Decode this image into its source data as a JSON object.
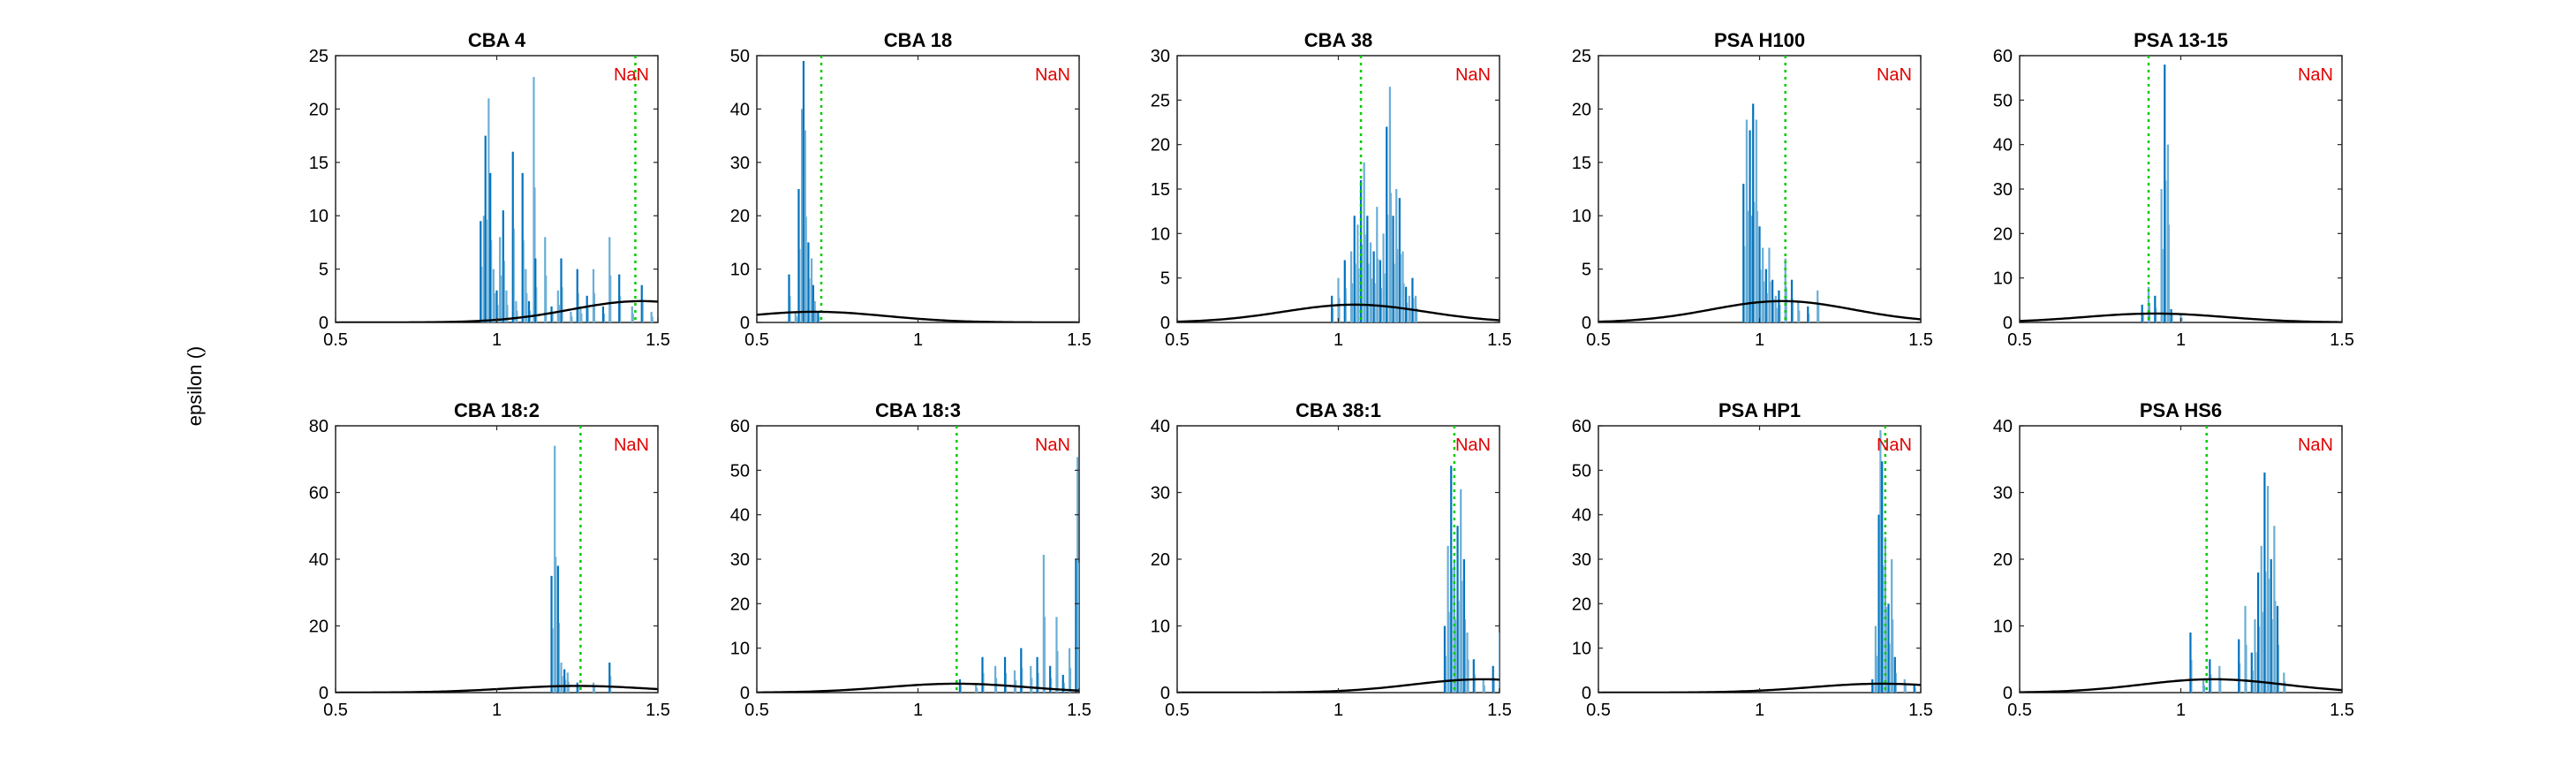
{
  "figure": {
    "ylabel": "epsilon ()"
  },
  "colors": {
    "bars": "#0072bd",
    "bars_light": "#6baed6",
    "fit_curve": "#000000",
    "marker_line": "#00cc00",
    "nan_text": "#e00000",
    "axes": "#262626"
  },
  "chart_data": [
    {
      "type": "line",
      "title": "CBA 4",
      "annotation": "NaN",
      "xlim": [
        0.5,
        1.5
      ],
      "ylim": [
        0,
        25
      ],
      "xticks": [
        0.5,
        1,
        1.5
      ],
      "xtick_labels": [
        "0.5",
        "1",
        "1.5"
      ],
      "yticks": [
        0,
        5,
        10,
        15,
        20,
        25
      ],
      "ytick_labels": [
        "0",
        "5",
        "10",
        "15",
        "20",
        "25"
      ],
      "marker_x": 1.43,
      "fit": {
        "mean": 1.45,
        "sd": 0.22,
        "peak": 2
      },
      "spikes": [
        [
          0.95,
          9.5
        ],
        [
          0.96,
          10
        ],
        [
          0.965,
          17.5
        ],
        [
          0.975,
          21
        ],
        [
          0.98,
          14
        ],
        [
          0.99,
          5
        ],
        [
          1.0,
          3
        ],
        [
          1.01,
          8
        ],
        [
          1.02,
          10.5
        ],
        [
          1.03,
          3
        ],
        [
          1.05,
          16
        ],
        [
          1.06,
          2
        ],
        [
          1.08,
          14
        ],
        [
          1.09,
          5
        ],
        [
          1.1,
          2
        ],
        [
          1.115,
          23
        ],
        [
          1.12,
          6
        ],
        [
          1.15,
          8
        ],
        [
          1.17,
          1.5
        ],
        [
          1.19,
          3
        ],
        [
          1.2,
          6
        ],
        [
          1.23,
          1
        ],
        [
          1.25,
          5
        ],
        [
          1.26,
          1.5
        ],
        [
          1.28,
          2.5
        ],
        [
          1.3,
          5
        ],
        [
          1.33,
          1.5
        ],
        [
          1.35,
          8
        ],
        [
          1.38,
          4.5
        ],
        [
          1.42,
          1.5
        ],
        [
          1.45,
          3.5
        ],
        [
          1.48,
          1
        ]
      ]
    },
    {
      "type": "line",
      "title": "CBA 18",
      "annotation": "NaN",
      "xlim": [
        0.5,
        1.5
      ],
      "ylim": [
        0,
        50
      ],
      "xticks": [
        0.5,
        1,
        1.5
      ],
      "xtick_labels": [
        "0.5",
        "1",
        "1.5"
      ],
      "yticks": [
        0,
        10,
        20,
        30,
        40,
        50
      ],
      "ytick_labels": [
        "0",
        "10",
        "20",
        "30",
        "40",
        "50"
      ],
      "marker_x": 0.7,
      "fit": {
        "mean": 0.68,
        "sd": 0.22,
        "peak": 2
      },
      "spikes": [
        [
          0.6,
          9
        ],
        [
          0.62,
          2
        ],
        [
          0.63,
          25
        ],
        [
          0.64,
          40
        ],
        [
          0.645,
          49
        ],
        [
          0.65,
          36
        ],
        [
          0.66,
          15
        ],
        [
          0.67,
          12
        ],
        [
          0.675,
          7
        ],
        [
          0.68,
          4
        ],
        [
          0.69,
          2
        ]
      ]
    },
    {
      "type": "line",
      "title": "CBA 38",
      "annotation": "NaN",
      "xlim": [
        0.5,
        1.5
      ],
      "ylim": [
        0,
        30
      ],
      "xticks": [
        0.5,
        1,
        1.5
      ],
      "xtick_labels": [
        "0.5",
        "1",
        "1.5"
      ],
      "yticks": [
        0,
        5,
        10,
        15,
        20,
        25,
        30
      ],
      "ytick_labels": [
        "0",
        "5",
        "10",
        "15",
        "20",
        "25",
        "30"
      ],
      "marker_x": 1.07,
      "fit": {
        "mean": 1.05,
        "sd": 0.22,
        "peak": 2
      },
      "spikes": [
        [
          0.98,
          3
        ],
        [
          1.0,
          5
        ],
        [
          1.02,
          7
        ],
        [
          1.04,
          8
        ],
        [
          1.05,
          12
        ],
        [
          1.06,
          11
        ],
        [
          1.07,
          16
        ],
        [
          1.08,
          18
        ],
        [
          1.09,
          12
        ],
        [
          1.1,
          9
        ],
        [
          1.11,
          8
        ],
        [
          1.12,
          13
        ],
        [
          1.13,
          7
        ],
        [
          1.14,
          10
        ],
        [
          1.15,
          22
        ],
        [
          1.16,
          26.5
        ],
        [
          1.17,
          12
        ],
        [
          1.18,
          15
        ],
        [
          1.19,
          14
        ],
        [
          1.2,
          8
        ],
        [
          1.21,
          4
        ],
        [
          1.22,
          3
        ],
        [
          1.23,
          5
        ],
        [
          1.24,
          3
        ]
      ]
    },
    {
      "type": "line",
      "title": "PSA H100",
      "annotation": "NaN",
      "xlim": [
        0.5,
        1.5
      ],
      "ylim": [
        0,
        25
      ],
      "xticks": [
        0.5,
        1,
        1.5
      ],
      "xtick_labels": [
        "0.5",
        "1",
        "1.5"
      ],
      "yticks": [
        0,
        5,
        10,
        15,
        20,
        25
      ],
      "ytick_labels": [
        "0",
        "5",
        "10",
        "15",
        "20",
        "25"
      ],
      "marker_x": 1.08,
      "fit": {
        "mean": 1.07,
        "sd": 0.22,
        "peak": 2
      },
      "spikes": [
        [
          0.95,
          13
        ],
        [
          0.96,
          19
        ],
        [
          0.97,
          18
        ],
        [
          0.975,
          10
        ],
        [
          0.98,
          20.5
        ],
        [
          0.99,
          19
        ],
        [
          1.0,
          9
        ],
        [
          1.01,
          7
        ],
        [
          1.02,
          5
        ],
        [
          1.03,
          7
        ],
        [
          1.04,
          4
        ],
        [
          1.05,
          2.5
        ],
        [
          1.06,
          3
        ],
        [
          1.08,
          6
        ],
        [
          1.1,
          4
        ],
        [
          1.12,
          2
        ],
        [
          1.15,
          1.5
        ],
        [
          1.18,
          3
        ]
      ]
    },
    {
      "type": "line",
      "title": "PSA 13-15",
      "annotation": "NaN",
      "xlim": [
        0.5,
        1.5
      ],
      "ylim": [
        0,
        60
      ],
      "xticks": [
        0.5,
        1,
        1.5
      ],
      "xtick_labels": [
        "0.5",
        "1",
        "1.5"
      ],
      "yticks": [
        0,
        10,
        20,
        30,
        40,
        50,
        60
      ],
      "ytick_labels": [
        "0",
        "10",
        "20",
        "30",
        "40",
        "50",
        "60"
      ],
      "marker_x": 0.9,
      "fit": {
        "mean": 0.92,
        "sd": 0.22,
        "peak": 2
      },
      "spikes": [
        [
          0.88,
          4
        ],
        [
          0.9,
          8
        ],
        [
          0.92,
          6
        ],
        [
          0.94,
          30
        ],
        [
          0.95,
          58
        ],
        [
          0.96,
          40
        ],
        [
          0.97,
          3
        ],
        [
          1.0,
          2
        ]
      ]
    },
    {
      "type": "line",
      "title": "CBA 18:2",
      "annotation": "NaN",
      "xlim": [
        0.5,
        1.5
      ],
      "ylim": [
        0,
        80
      ],
      "xticks": [
        0.5,
        1,
        1.5
      ],
      "xtick_labels": [
        "0.5",
        "1",
        "1.5"
      ],
      "yticks": [
        0,
        20,
        40,
        60,
        80
      ],
      "ytick_labels": [
        "0",
        "20",
        "40",
        "60",
        "80"
      ],
      "marker_x": 1.26,
      "fit": {
        "mean": 1.25,
        "sd": 0.22,
        "peak": 2
      },
      "spikes": [
        [
          1.17,
          35
        ],
        [
          1.18,
          74
        ],
        [
          1.19,
          38
        ],
        [
          1.2,
          9
        ],
        [
          1.21,
          7
        ],
        [
          1.22,
          6
        ],
        [
          1.25,
          3
        ],
        [
          1.3,
          3
        ],
        [
          1.35,
          9
        ]
      ]
    },
    {
      "type": "line",
      "title": "CBA 18:3",
      "annotation": "NaN",
      "xlim": [
        0.5,
        1.5
      ],
      "ylim": [
        0,
        60
      ],
      "xticks": [
        0.5,
        1,
        1.5
      ],
      "xtick_labels": [
        "0.5",
        "1",
        "1.5"
      ],
      "yticks": [
        0,
        10,
        20,
        30,
        40,
        50,
        60
      ],
      "ytick_labels": [
        "0",
        "10",
        "20",
        "30",
        "40",
        "50",
        "60"
      ],
      "marker_x": 1.12,
      "fit": {
        "mean": 1.12,
        "sd": 0.22,
        "peak": 2
      },
      "spikes": [
        [
          1.13,
          3
        ],
        [
          1.18,
          2
        ],
        [
          1.2,
          8
        ],
        [
          1.24,
          6
        ],
        [
          1.27,
          8
        ],
        [
          1.3,
          5
        ],
        [
          1.32,
          10
        ],
        [
          1.35,
          6
        ],
        [
          1.37,
          8
        ],
        [
          1.39,
          31
        ],
        [
          1.41,
          6
        ],
        [
          1.43,
          17
        ],
        [
          1.45,
          4
        ],
        [
          1.47,
          10
        ],
        [
          1.49,
          30
        ],
        [
          1.495,
          53
        ]
      ]
    },
    {
      "type": "line",
      "title": "CBA 38:1",
      "annotation": "NaN",
      "xlim": [
        0.5,
        1.5
      ],
      "ylim": [
        0,
        40
      ],
      "xticks": [
        0.5,
        1,
        1.5
      ],
      "xtick_labels": [
        "0.5",
        "1",
        "1.5"
      ],
      "yticks": [
        0,
        10,
        20,
        30,
        40
      ],
      "ytick_labels": [
        "0",
        "10",
        "20",
        "30",
        "40"
      ],
      "marker_x": 1.36,
      "fit": {
        "mean": 1.45,
        "sd": 0.22,
        "peak": 2
      },
      "spikes": [
        [
          1.33,
          10
        ],
        [
          1.34,
          22
        ],
        [
          1.35,
          34
        ],
        [
          1.36,
          20
        ],
        [
          1.37,
          25
        ],
        [
          1.38,
          30.5
        ],
        [
          1.39,
          20
        ],
        [
          1.4,
          9
        ],
        [
          1.42,
          5
        ],
        [
          1.45,
          2
        ],
        [
          1.48,
          4
        ],
        [
          1.5,
          9
        ]
      ]
    },
    {
      "type": "line",
      "title": "PSA HP1",
      "annotation": "NaN",
      "xlim": [
        0.5,
        1.5
      ],
      "ylim": [
        0,
        60
      ],
      "xticks": [
        0.5,
        1,
        1.5
      ],
      "xtick_labels": [
        "0.5",
        "1",
        "1.5"
      ],
      "yticks": [
        0,
        10,
        20,
        30,
        40,
        50,
        60
      ],
      "ytick_labels": [
        "0",
        "10",
        "20",
        "30",
        "40",
        "50",
        "60"
      ],
      "marker_x": 1.39,
      "fit": {
        "mean": 1.38,
        "sd": 0.22,
        "peak": 2
      },
      "spikes": [
        [
          1.35,
          3
        ],
        [
          1.36,
          15
        ],
        [
          1.37,
          40
        ],
        [
          1.375,
          59
        ],
        [
          1.38,
          52
        ],
        [
          1.39,
          35
        ],
        [
          1.4,
          20
        ],
        [
          1.41,
          30
        ],
        [
          1.42,
          8
        ],
        [
          1.45,
          3
        ],
        [
          1.48,
          2
        ]
      ]
    },
    {
      "type": "line",
      "title": "PSA HS6",
      "annotation": "NaN",
      "xlim": [
        0.5,
        1.5
      ],
      "ylim": [
        0,
        40
      ],
      "xticks": [
        0.5,
        1,
        1.5
      ],
      "xtick_labels": [
        "0.5",
        "1",
        "1.5"
      ],
      "yticks": [
        0,
        10,
        20,
        30,
        40
      ],
      "ytick_labels": [
        "0",
        "10",
        "20",
        "30",
        "40"
      ],
      "marker_x": 1.08,
      "fit": {
        "mean": 1.1,
        "sd": 0.22,
        "peak": 2
      },
      "spikes": [
        [
          1.03,
          9
        ],
        [
          1.07,
          2
        ],
        [
          1.09,
          5
        ],
        [
          1.12,
          4
        ],
        [
          1.18,
          8
        ],
        [
          1.2,
          13
        ],
        [
          1.22,
          6
        ],
        [
          1.23,
          11
        ],
        [
          1.24,
          18
        ],
        [
          1.25,
          22
        ],
        [
          1.26,
          33
        ],
        [
          1.27,
          31
        ],
        [
          1.28,
          20
        ],
        [
          1.29,
          25
        ],
        [
          1.3,
          13
        ],
        [
          1.32,
          3
        ]
      ]
    }
  ]
}
